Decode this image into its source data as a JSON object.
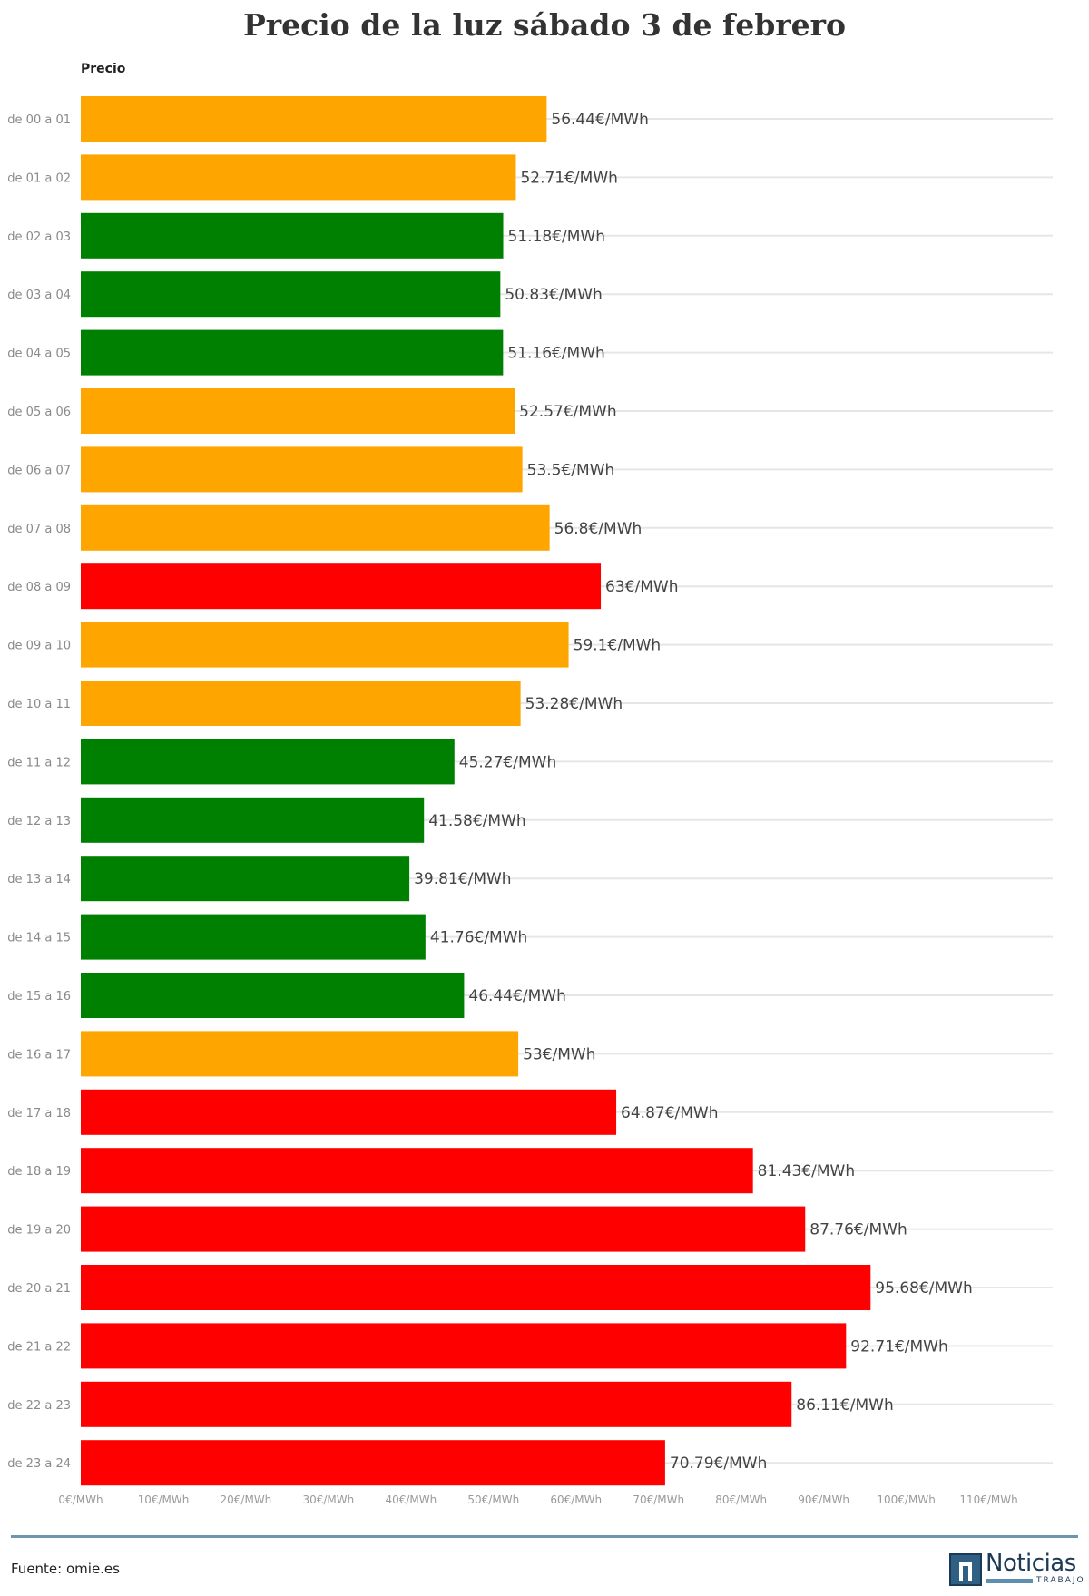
{
  "chart_data": {
    "type": "bar",
    "orientation": "horizontal",
    "title": "Precio de la luz sábado 3 de febrero",
    "series_label": "Precio",
    "unit": "€/MWh",
    "categories": [
      "de 00 a 01",
      "de 01 a 02",
      "de 02 a 03",
      "de 03 a 04",
      "de 04 a 05",
      "de 05 a 06",
      "de 06 a 07",
      "de 07 a 08",
      "de 08 a 09",
      "de 09 a 10",
      "de 10 a 11",
      "de 11 a 12",
      "de 12 a 13",
      "de 13 a 14",
      "de 14 a 15",
      "de 15 a 16",
      "de 16 a 17",
      "de 17 a 18",
      "de 18 a 19",
      "de 19 a 20",
      "de 20 a 21",
      "de 21 a 22",
      "de 22 a 23",
      "de 23 a 24"
    ],
    "values": [
      56.44,
      52.71,
      51.18,
      50.83,
      51.16,
      52.57,
      53.5,
      56.8,
      63,
      59.1,
      53.28,
      45.27,
      41.58,
      39.81,
      41.76,
      46.44,
      53,
      64.87,
      81.43,
      87.76,
      95.68,
      92.71,
      86.11,
      70.79
    ],
    "value_labels": [
      "56.44€/MWh",
      "52.71€/MWh",
      "51.18€/MWh",
      "50.83€/MWh",
      "51.16€/MWh",
      "52.57€/MWh",
      "53.5€/MWh",
      "56.8€/MWh",
      "63€/MWh",
      "59.1€/MWh",
      "53.28€/MWh",
      "45.27€/MWh",
      "41.58€/MWh",
      "39.81€/MWh",
      "41.76€/MWh",
      "46.44€/MWh",
      "53€/MWh",
      "64.87€/MWh",
      "81.43€/MWh",
      "87.76€/MWh",
      "95.68€/MWh",
      "92.71€/MWh",
      "86.11€/MWh",
      "70.79€/MWh"
    ],
    "bar_levels": [
      "medio",
      "medio",
      "bajo",
      "bajo",
      "bajo",
      "medio",
      "medio",
      "medio",
      "alto",
      "medio",
      "medio",
      "bajo",
      "bajo",
      "bajo",
      "bajo",
      "bajo",
      "medio",
      "alto",
      "alto",
      "alto",
      "alto",
      "alto",
      "alto",
      "alto"
    ],
    "level_colors": {
      "bajo": "#008000",
      "medio": "#ffa500",
      "alto": "#ff0000"
    },
    "xlim": [
      0,
      117
    ],
    "x_ticks": [
      0,
      10,
      20,
      30,
      40,
      50,
      60,
      70,
      80,
      90,
      100,
      110
    ],
    "x_tick_labels": [
      "0€/MWh",
      "10€/MWh",
      "20€/MWh",
      "30€/MWh",
      "40€/MWh",
      "50€/MWh",
      "60€/MWh",
      "70€/MWh",
      "80€/MWh",
      "90€/MWh",
      "100€/MWh",
      "110€/MWh"
    ],
    "grid": true
  },
  "footer": {
    "source": "Fuente: omie.es",
    "logo_name": "Noticias",
    "logo_sub": "TRABAJO"
  },
  "colors": {
    "divider": "#6f96ad",
    "logo": "#1b3a55"
  }
}
